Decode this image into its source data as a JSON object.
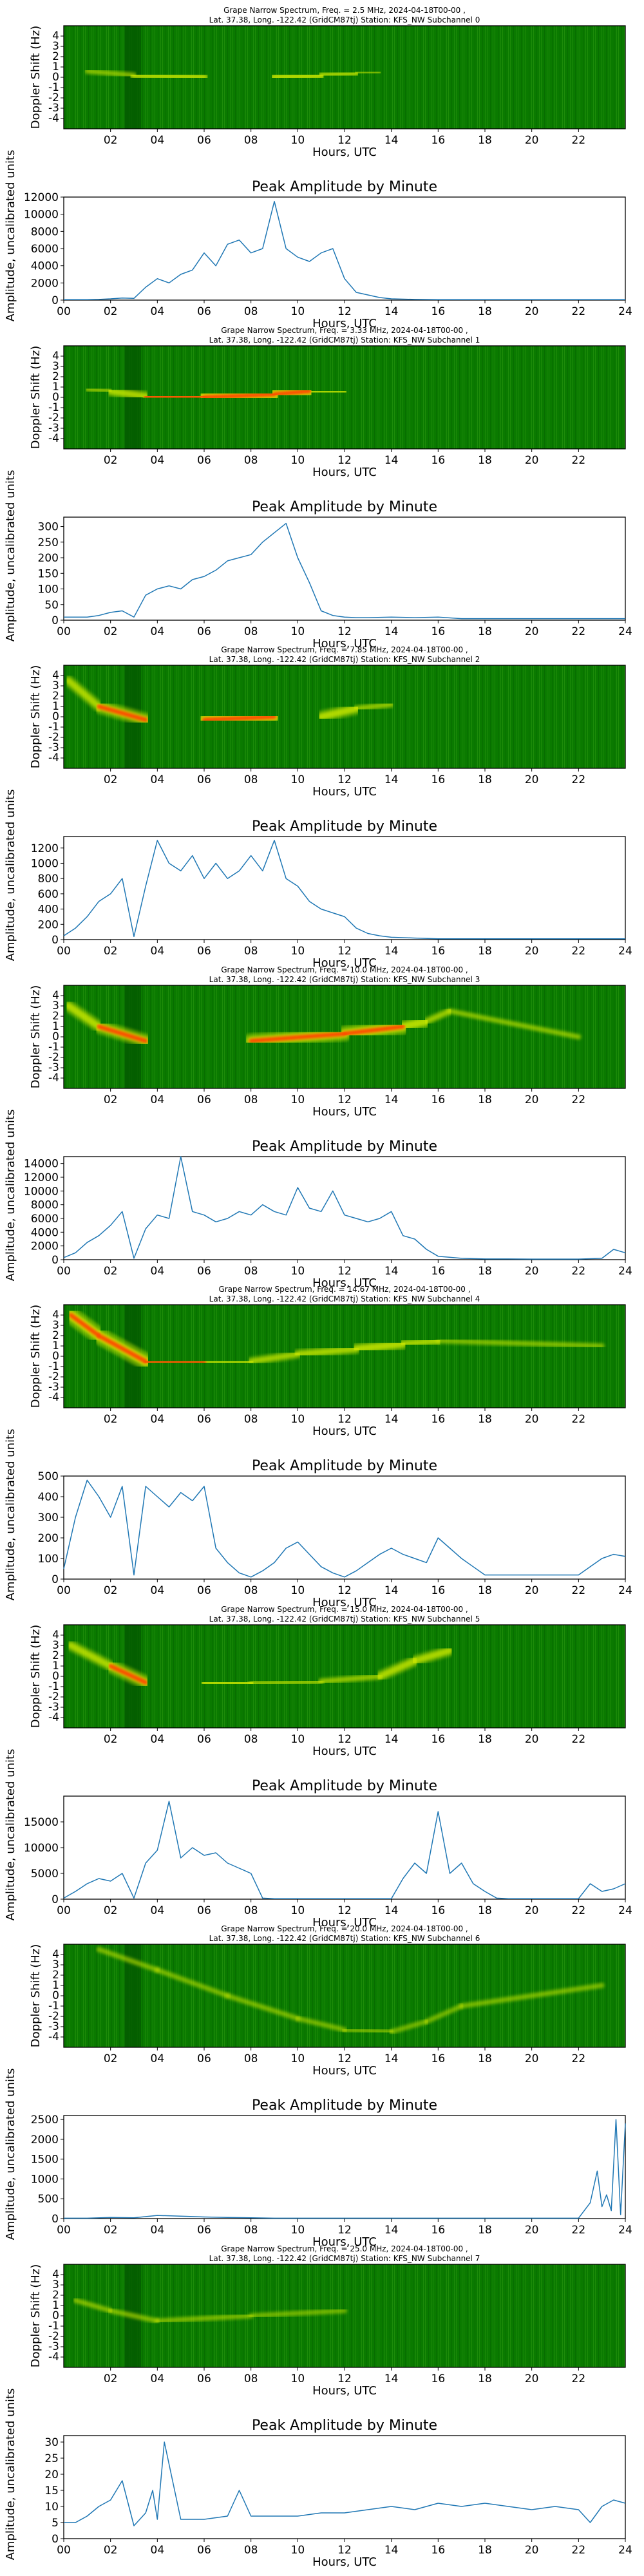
{
  "figure": {
    "colors": {
      "line": "#1f77b4",
      "spec_bg": "#0a7a00",
      "spec_mid": "#c8e600",
      "spec_hot": "#ff4a00"
    },
    "spectrogram_ylabel": "Doppler Shift (Hz)",
    "spectrogram_xlabel": "Hours, UTC",
    "line_title": "Peak Amplitude by Minute",
    "line_ylabel": "Amplitude, uncalibrated units",
    "line_xlabel": "Hours, UTC",
    "spec_xticks": [
      "02",
      "04",
      "06",
      "08",
      "10",
      "12",
      "14",
      "16",
      "18",
      "20",
      "22"
    ],
    "spec_yticks": [
      "4",
      "3",
      "2",
      "1",
      "0",
      "-1",
      "-2",
      "-3",
      "-4"
    ],
    "line_xticks": [
      "00",
      "02",
      "04",
      "06",
      "08",
      "10",
      "12",
      "14",
      "16",
      "18",
      "20",
      "22",
      "24"
    ]
  },
  "chart_data": [
    {
      "type": "heatmap",
      "title_line1": "Grape Narrow Spectrum, Freq. = 2.5 MHz, 2024-04-18T00-00 ,",
      "title_line2": "Lat.  37.38, Long. -122.42 (GridCM87tj) Station: KFS_NW Subchannel 0",
      "xlabel": "Hours, UTC",
      "ylabel": "Doppler Shift (Hz)",
      "xlim": [
        0,
        24
      ],
      "ylim": [
        -5,
        5
      ],
      "signal": [
        [
          1,
          0.6,
          0.2
        ],
        [
          3,
          0.2,
          0.5
        ],
        [
          6,
          0,
          0.7
        ],
        [
          9,
          0,
          0.7
        ],
        [
          11,
          0.2,
          0.6
        ],
        [
          12.5,
          0.4,
          0.4
        ],
        [
          13.5,
          0.5,
          0.2
        ],
        [
          15,
          0.5,
          0
        ]
      ]
    },
    {
      "type": "line",
      "title": "Peak Amplitude by Minute",
      "xlabel": "Hours, UTC",
      "ylabel": "Amplitude, uncalibrated units",
      "xlim": [
        0,
        24
      ],
      "ylim": [
        0,
        12000
      ],
      "yticks": [
        0,
        2000,
        4000,
        6000,
        8000,
        10000,
        12000
      ],
      "x": [
        0,
        0.5,
        1,
        1.5,
        2,
        2.5,
        3,
        3.5,
        4,
        4.5,
        5,
        5.5,
        6,
        6.5,
        7,
        7.5,
        8,
        8.5,
        9,
        9.5,
        10,
        10.5,
        11,
        11.5,
        12,
        12.5,
        13,
        13.5,
        14,
        15,
        16,
        17,
        18,
        19,
        20,
        21,
        22,
        23,
        24
      ],
      "values": [
        50,
        50,
        60,
        80,
        150,
        250,
        200,
        1500,
        2500,
        2000,
        3000,
        3500,
        5500,
        4000,
        6500,
        7000,
        5500,
        6000,
        11500,
        6000,
        5000,
        4500,
        5500,
        6000,
        2500,
        900,
        600,
        300,
        150,
        80,
        60,
        60,
        50,
        50,
        50,
        50,
        50,
        50,
        50
      ]
    },
    {
      "type": "heatmap",
      "title_line1": "Grape Narrow Spectrum, Freq. = 3.33 MHz, 2024-04-18T00-00 ,",
      "title_line2": "Lat.  37.38, Long. -122.42 (GridCM87tj) Station: KFS_NW Subchannel 1",
      "xlabel": "Hours, UTC",
      "ylabel": "Doppler Shift (Hz)",
      "xlim": [
        0,
        24
      ],
      "ylim": [
        -5,
        5
      ],
      "signal": [
        [
          1,
          0.8,
          0.2
        ],
        [
          2,
          0.6,
          0.5
        ],
        [
          3.5,
          0.1,
          0.7
        ],
        [
          6,
          0,
          0.85
        ],
        [
          9,
          0.3,
          1
        ],
        [
          10.5,
          0.6,
          0.8
        ],
        [
          12,
          0.5,
          0.4
        ],
        [
          14,
          0.5,
          0.1
        ]
      ]
    },
    {
      "type": "line",
      "title": "Peak Amplitude by Minute",
      "xlabel": "Hours, UTC",
      "ylabel": "Amplitude, uncalibrated units",
      "xlim": [
        0,
        24
      ],
      "ylim": [
        0,
        330
      ],
      "yticks": [
        0,
        50,
        100,
        150,
        200,
        250,
        300
      ],
      "x": [
        0,
        0.5,
        1,
        1.5,
        2,
        2.5,
        3,
        3.5,
        4,
        4.5,
        5,
        5.5,
        6,
        6.5,
        7,
        7.5,
        8,
        8.5,
        9,
        9.5,
        10,
        10.5,
        11,
        11.5,
        12,
        12.5,
        13,
        14,
        15,
        16,
        17,
        18,
        19,
        20,
        21,
        22,
        23,
        24
      ],
      "values": [
        10,
        10,
        10,
        15,
        25,
        30,
        10,
        80,
        100,
        110,
        100,
        130,
        140,
        160,
        190,
        200,
        210,
        250,
        280,
        310,
        200,
        120,
        30,
        15,
        10,
        8,
        8,
        10,
        8,
        10,
        5,
        5,
        5,
        5,
        5,
        5,
        5,
        5
      ]
    },
    {
      "type": "heatmap",
      "title_line1": "Grape Narrow Spectrum, Freq. = 7.85 MHz, 2024-04-18T00-00 ,",
      "title_line2": "Lat.  37.38, Long. -122.42 (GridCM87tj) Station: KFS_NW Subchannel 2",
      "xlabel": "Hours, UTC",
      "ylabel": "Doppler Shift (Hz)",
      "xlim": [
        0,
        24
      ],
      "ylim": [
        -5,
        5
      ],
      "signal": [
        [
          0.2,
          3.5,
          0.6
        ],
        [
          1.5,
          1,
          0.6
        ],
        [
          3.5,
          -0.3,
          0.9
        ],
        [
          6,
          -0.3,
          0.9
        ],
        [
          9,
          0,
          0.9
        ],
        [
          11,
          0,
          0.8
        ],
        [
          12.5,
          0.8,
          0.5
        ],
        [
          14,
          1.2,
          0.3
        ]
      ]
    },
    {
      "type": "line",
      "title": "Peak Amplitude by Minute",
      "xlabel": "Hours, UTC",
      "ylabel": "Amplitude, uncalibrated units",
      "xlim": [
        0,
        24
      ],
      "ylim": [
        0,
        1350
      ],
      "yticks": [
        0,
        200,
        400,
        600,
        800,
        1000,
        1200
      ],
      "x": [
        0,
        0.5,
        1,
        1.5,
        2,
        2.5,
        3,
        3.5,
        4,
        4.5,
        5,
        5.5,
        6,
        6.5,
        7,
        7.5,
        8,
        8.5,
        9,
        9.5,
        10,
        10.5,
        11,
        11.5,
        12,
        12.5,
        13,
        13.5,
        14,
        15,
        16,
        17,
        18,
        19,
        20,
        21,
        22,
        23,
        24
      ],
      "values": [
        50,
        150,
        300,
        500,
        600,
        800,
        40,
        700,
        1300,
        1000,
        900,
        1100,
        800,
        1000,
        800,
        900,
        1100,
        900,
        1300,
        800,
        700,
        500,
        400,
        350,
        300,
        150,
        80,
        50,
        30,
        20,
        10,
        10,
        10,
        10,
        10,
        10,
        10,
        10,
        10
      ]
    },
    {
      "type": "heatmap",
      "title_line1": "Grape Narrow Spectrum, Freq. = 10.0 MHz, 2024-04-18T00-00 ,",
      "title_line2": "Lat.  37.38, Long. -122.42 (GridCM87tj) Station: KFS_NW Subchannel 3",
      "xlabel": "Hours, UTC",
      "ylabel": "Doppler Shift (Hz)",
      "xlim": [
        0,
        24
      ],
      "ylim": [
        -5,
        5
      ],
      "signal": [
        [
          0.2,
          3,
          0.6
        ],
        [
          1.5,
          1,
          0.7
        ],
        [
          3.5,
          -0.4,
          0.8
        ],
        [
          8,
          -0.4,
          0.8
        ],
        [
          12,
          0.3,
          0.8
        ],
        [
          14.5,
          1,
          0.9
        ],
        [
          15.5,
          1.5,
          0.5
        ],
        [
          16.5,
          2.5,
          0.4
        ],
        [
          22,
          0,
          0.3
        ],
        [
          24,
          0,
          0.6
        ]
      ]
    },
    {
      "type": "line",
      "title": "Peak Amplitude by Minute",
      "xlabel": "Hours, UTC",
      "ylabel": "Amplitude, uncalibrated units",
      "xlim": [
        0,
        24
      ],
      "ylim": [
        0,
        15000
      ],
      "yticks": [
        0,
        2000,
        4000,
        6000,
        8000,
        10000,
        12000,
        14000
      ],
      "x": [
        0,
        0.5,
        1,
        1.5,
        2,
        2.5,
        3,
        3.5,
        4,
        4.5,
        5,
        5.5,
        6,
        6.5,
        7,
        7.5,
        8,
        8.5,
        9,
        9.5,
        10,
        10.5,
        11,
        11.5,
        12,
        12.5,
        13,
        13.5,
        14,
        14.5,
        15,
        15.5,
        16,
        17,
        18,
        19,
        20,
        21,
        22,
        23,
        23.5,
        24
      ],
      "values": [
        300,
        1000,
        2500,
        3500,
        5000,
        7000,
        200,
        4500,
        6500,
        6000,
        15000,
        7000,
        6500,
        5500,
        6000,
        7000,
        6500,
        8000,
        7000,
        6500,
        10500,
        7500,
        7000,
        10000,
        6500,
        6000,
        5500,
        6000,
        7000,
        3500,
        3000,
        1500,
        500,
        200,
        100,
        100,
        80,
        80,
        80,
        200,
        1500,
        1000
      ]
    },
    {
      "type": "heatmap",
      "title_line1": "Grape Narrow Spectrum, Freq. = 14.67 MHz, 2024-04-18T00-00 ,",
      "title_line2": "Lat.  37.38, Long. -122.42 (GridCM87tj) Station: KFS_NW Subchannel 4",
      "xlabel": "Hours, UTC",
      "ylabel": "Doppler Shift (Hz)",
      "xlim": [
        0,
        24
      ],
      "ylim": [
        -5,
        5
      ],
      "signal": [
        [
          0.3,
          4,
          0.9
        ],
        [
          1.5,
          2,
          0.9
        ],
        [
          3.5,
          -0.5,
          0.9
        ],
        [
          6,
          -0.6,
          0.9
        ],
        [
          8,
          -0.5,
          0.5
        ],
        [
          10,
          0.2,
          0.5
        ],
        [
          12.5,
          0.7,
          0.6
        ],
        [
          14.5,
          1.2,
          0.7
        ],
        [
          16,
          1.5,
          0.4
        ],
        [
          23,
          1,
          0.2
        ]
      ]
    },
    {
      "type": "line",
      "title": "Peak Amplitude by Minute",
      "xlabel": "Hours, UTC",
      "ylabel": "Amplitude, uncalibrated units",
      "xlim": [
        0,
        24
      ],
      "ylim": [
        0,
        500
      ],
      "yticks": [
        0,
        100,
        200,
        300,
        400,
        500
      ],
      "x": [
        0,
        0.5,
        1,
        1.5,
        2,
        2.5,
        3,
        3.5,
        4,
        4.5,
        5,
        5.5,
        6,
        6.5,
        7,
        7.5,
        8,
        8.5,
        9,
        9.5,
        10,
        10.5,
        11,
        11.5,
        12,
        12.5,
        13,
        13.5,
        14,
        14.5,
        15,
        15.5,
        16,
        16.5,
        17,
        17.5,
        18,
        19,
        20,
        21,
        22,
        22.5,
        23,
        23.5,
        24
      ],
      "values": [
        50,
        300,
        480,
        400,
        300,
        450,
        20,
        450,
        400,
        350,
        420,
        380,
        450,
        150,
        80,
        30,
        10,
        40,
        80,
        150,
        180,
        120,
        60,
        30,
        10,
        40,
        80,
        120,
        150,
        120,
        100,
        80,
        200,
        150,
        100,
        60,
        20,
        20,
        20,
        20,
        20,
        60,
        100,
        120,
        110
      ]
    },
    {
      "type": "heatmap",
      "title_line1": "Grape Narrow Spectrum, Freq. = 15.0 MHz, 2024-04-18T00-00 ,",
      "title_line2": "Lat.  37.38, Long. -122.42 (GridCM87tj) Station: KFS_NW Subchannel 5",
      "xlabel": "Hours, UTC",
      "ylabel": "Doppler Shift (Hz)",
      "xlim": [
        0,
        24
      ],
      "ylim": [
        -5,
        5
      ],
      "signal": [
        [
          0.3,
          3,
          0.6
        ],
        [
          2,
          1,
          0.6
        ],
        [
          3.5,
          -0.6,
          0.9
        ],
        [
          6,
          -0.6,
          0.8
        ],
        [
          8,
          -0.7,
          0.5
        ],
        [
          11,
          -0.5,
          0.3
        ],
        [
          13.5,
          0,
          0.5
        ],
        [
          15,
          1.5,
          0.7
        ],
        [
          16.5,
          2.5,
          0.5
        ]
      ]
    },
    {
      "type": "line",
      "title": "Peak Amplitude by Minute",
      "xlabel": "Hours, UTC",
      "ylabel": "Amplitude, uncalibrated units",
      "xlim": [
        0,
        24
      ],
      "ylim": [
        0,
        20000
      ],
      "yticks": [
        0,
        5000,
        10000,
        15000
      ],
      "x": [
        0,
        0.5,
        1,
        1.5,
        2,
        2.5,
        3,
        3.5,
        4,
        4.5,
        5,
        5.5,
        6,
        6.5,
        7,
        7.5,
        8,
        8.5,
        9,
        10,
        11,
        12,
        13,
        14,
        14.5,
        15,
        15.5,
        16,
        16.5,
        17,
        17.5,
        18,
        18.5,
        19,
        20,
        21,
        22,
        22.5,
        23,
        23.5,
        24
      ],
      "values": [
        200,
        1500,
        3000,
        4000,
        3500,
        5000,
        200,
        7000,
        9500,
        19000,
        8000,
        10000,
        8500,
        9000,
        7000,
        6000,
        5000,
        200,
        100,
        100,
        100,
        100,
        100,
        100,
        4000,
        7000,
        5000,
        17000,
        5000,
        7000,
        3000,
        1500,
        200,
        100,
        100,
        100,
        100,
        3000,
        1500,
        2000,
        3000
      ]
    },
    {
      "type": "heatmap",
      "title_line1": "Grape Narrow Spectrum, Freq. = 20.0 MHz, 2024-04-18T00-00 ,",
      "title_line2": "Lat.  37.38, Long. -122.42 (GridCM87tj) Station: KFS_NW Subchannel 6",
      "xlabel": "Hours, UTC",
      "ylabel": "Doppler Shift (Hz)",
      "xlim": [
        0,
        24
      ],
      "ylim": [
        -5,
        5
      ],
      "signal": [
        [
          1.5,
          4.5,
          0.3
        ],
        [
          4,
          2.5,
          0.25
        ],
        [
          7,
          0,
          0.25
        ],
        [
          10,
          -2.2,
          0.25
        ],
        [
          12,
          -3.3,
          0.2
        ],
        [
          14,
          -3.5,
          0.2
        ],
        [
          15.5,
          -2.5,
          0.2
        ],
        [
          17,
          -1,
          0.2
        ],
        [
          23,
          1,
          0.3
        ]
      ]
    },
    {
      "type": "line",
      "title": "Peak Amplitude by Minute",
      "xlabel": "Hours, UTC",
      "ylabel": "Amplitude, uncalibrated units",
      "xlim": [
        0,
        24
      ],
      "ylim": [
        0,
        2600
      ],
      "yticks": [
        0,
        500,
        1000,
        1500,
        2000,
        2500
      ],
      "x": [
        0,
        1,
        2,
        3,
        4,
        5,
        6,
        7,
        8,
        9,
        10,
        11,
        12,
        13,
        14,
        15,
        16,
        17,
        18,
        19,
        20,
        21,
        22,
        22.5,
        22.8,
        23,
        23.2,
        23.4,
        23.6,
        23.8,
        24
      ],
      "values": [
        10,
        10,
        30,
        20,
        80,
        60,
        40,
        30,
        20,
        10,
        10,
        10,
        10,
        10,
        10,
        10,
        10,
        10,
        10,
        10,
        10,
        10,
        10,
        400,
        1200,
        300,
        600,
        200,
        2500,
        100,
        2400
      ]
    },
    {
      "type": "heatmap",
      "title_line1": "Grape Narrow Spectrum, Freq. = 25.0 MHz, 2024-04-18T00-00 ,",
      "title_line2": "Lat.  37.38, Long. -122.42 (GridCM87tj) Station: KFS_NW Subchannel 7",
      "xlabel": "Hours, UTC",
      "ylabel": "Doppler Shift (Hz)",
      "xlim": [
        0,
        24
      ],
      "ylim": [
        -5,
        5
      ],
      "signal": [
        [
          0.5,
          1.5,
          0.3
        ],
        [
          2,
          0.5,
          0.3
        ],
        [
          4,
          -0.5,
          0.3
        ],
        [
          8,
          0,
          0.2
        ],
        [
          12,
          0.5,
          0.2
        ],
        [
          16,
          0.5,
          0.2
        ],
        [
          20,
          0.5,
          0.2
        ],
        [
          24,
          0.5,
          0.2
        ]
      ]
    },
    {
      "type": "line",
      "title": "Peak Amplitude by Minute",
      "xlabel": "Hours, UTC",
      "ylabel": "Amplitude, uncalibrated units",
      "xlim": [
        0,
        24
      ],
      "ylim": [
        0,
        32
      ],
      "yticks": [
        0,
        5,
        10,
        15,
        20,
        25,
        30
      ],
      "x": [
        0,
        0.5,
        1,
        1.5,
        2,
        2.5,
        3,
        3.5,
        3.8,
        4,
        4.3,
        5,
        6,
        7,
        7.5,
        8,
        9,
        10,
        11,
        12,
        13,
        14,
        15,
        16,
        17,
        18,
        19,
        20,
        21,
        22,
        22.5,
        23,
        23.5,
        24
      ],
      "values": [
        5,
        5,
        7,
        10,
        12,
        18,
        4,
        8,
        15,
        6,
        30,
        6,
        6,
        7,
        15,
        7,
        7,
        7,
        8,
        8,
        9,
        10,
        9,
        11,
        10,
        11,
        10,
        9,
        10,
        9,
        5,
        10,
        12,
        11
      ]
    }
  ]
}
